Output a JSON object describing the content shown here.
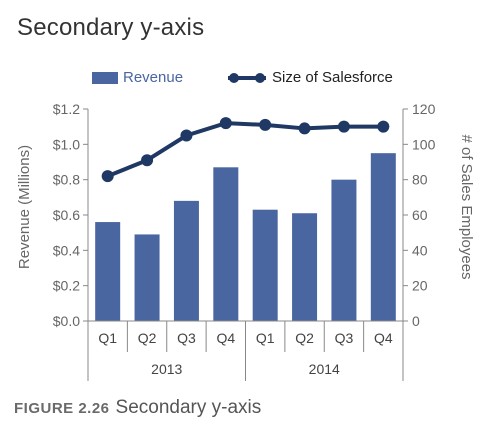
{
  "page_title": "Secondary y-axis",
  "caption": {
    "figure": "FIGURE 2.26",
    "text": "Secondary y-axis"
  },
  "chart_data": {
    "type": "bar",
    "title": "Secondary y-axis",
    "categories": [
      "Q1",
      "Q2",
      "Q3",
      "Q4",
      "Q1",
      "Q2",
      "Q3",
      "Q4"
    ],
    "groups": [
      {
        "label": "2013",
        "span": [
          0,
          3
        ]
      },
      {
        "label": "2014",
        "span": [
          4,
          7
        ]
      }
    ],
    "series": [
      {
        "name": "Revenue",
        "type": "bar",
        "axis": "left",
        "color": "#4a66a0",
        "values": [
          0.56,
          0.49,
          0.68,
          0.87,
          0.63,
          0.61,
          0.8,
          0.95
        ]
      },
      {
        "name": "Size of Salesforce",
        "type": "line",
        "axis": "right",
        "color": "#1f3864",
        "values": [
          82,
          91,
          105,
          112,
          111,
          109,
          110,
          110
        ]
      }
    ],
    "ylabel": "Revenue (Millions)",
    "ylabel_right": "# of Sales Employees",
    "ylim": [
      0,
      1.2
    ],
    "ylim_right": [
      0,
      120
    ],
    "yticks": [
      "$0.0",
      "$0.2",
      "$0.4",
      "$0.6",
      "$0.8",
      "$1.0",
      "$1.2"
    ],
    "yticks_right": [
      "0",
      "20",
      "40",
      "60",
      "80",
      "100",
      "120"
    ],
    "grid": false,
    "legend_position": "top"
  }
}
